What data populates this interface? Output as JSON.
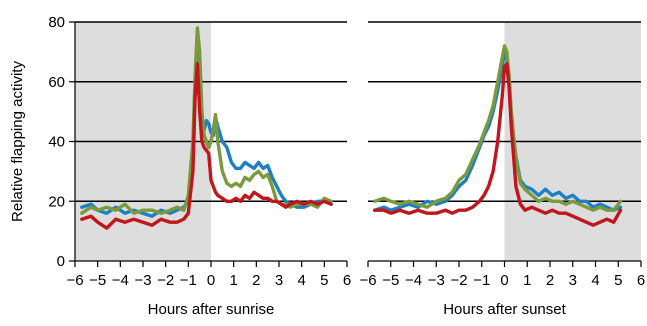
{
  "chart_data": [
    {
      "type": "line",
      "panel": "left",
      "xlabel": "Hours after sunrise",
      "ylabel": "Relative flapping activity",
      "xlim": [
        -6,
        6
      ],
      "ylim": [
        0,
        80
      ],
      "xticks": [
        "−6",
        "−5",
        "−4",
        "−3",
        "−2",
        "−1",
        "0",
        "1",
        "2",
        "3",
        "4",
        "5",
        "6"
      ],
      "yticks": [
        "0",
        "20",
        "40",
        "60",
        "80"
      ],
      "gridlines_y": [
        20,
        40,
        60,
        80
      ],
      "shaded_region": {
        "x": [
          -6,
          0
        ],
        "color": "#dddddd"
      },
      "series": [
        {
          "color": "#1f7fc4",
          "x": [
            -5.7,
            -5.3,
            -5.0,
            -4.6,
            -4.2,
            -3.8,
            -3.4,
            -3.0,
            -2.6,
            -2.2,
            -1.8,
            -1.5,
            -1.2,
            -1.0,
            -0.8,
            -0.7,
            -0.6,
            -0.5,
            -0.4,
            -0.3,
            -0.2,
            -0.1,
            0.0,
            0.1,
            0.2,
            0.3,
            0.5,
            0.7,
            0.9,
            1.1,
            1.3,
            1.5,
            1.7,
            1.9,
            2.1,
            2.3,
            2.5,
            2.7,
            2.9,
            3.1,
            3.3,
            3.5,
            3.8,
            4.1,
            4.4,
            4.7,
            5.0,
            5.3
          ],
          "y": [
            18,
            19,
            17,
            16,
            18,
            16,
            17,
            16,
            15,
            17,
            16,
            17,
            18,
            20,
            35,
            60,
            77,
            65,
            45,
            44,
            47,
            46,
            43,
            42,
            48,
            45,
            40,
            38,
            33,
            31,
            31,
            33,
            32,
            31,
            33,
            31,
            32,
            28,
            25,
            22,
            20,
            19,
            18,
            18,
            19,
            20,
            20,
            19
          ]
        },
        {
          "color": "#7a9a3d",
          "x": [
            -5.7,
            -5.3,
            -5.0,
            -4.6,
            -4.2,
            -3.8,
            -3.4,
            -3.0,
            -2.6,
            -2.2,
            -1.8,
            -1.5,
            -1.2,
            -1.0,
            -0.8,
            -0.7,
            -0.6,
            -0.5,
            -0.4,
            -0.3,
            -0.2,
            -0.1,
            0.0,
            0.1,
            0.2,
            0.3,
            0.5,
            0.7,
            0.9,
            1.1,
            1.3,
            1.5,
            1.7,
            1.9,
            2.1,
            2.3,
            2.5,
            2.7,
            2.9,
            3.1,
            3.3,
            3.5,
            3.8,
            4.1,
            4.4,
            4.7,
            5.0,
            5.3
          ],
          "y": [
            16,
            18,
            17,
            18,
            17,
            19,
            16,
            17,
            17,
            16,
            17,
            18,
            17,
            22,
            40,
            62,
            78,
            70,
            50,
            42,
            40,
            38,
            40,
            44,
            49,
            40,
            30,
            26,
            25,
            26,
            25,
            28,
            27,
            29,
            30,
            28,
            29,
            25,
            20,
            19,
            19,
            18,
            19,
            19,
            19,
            18,
            21,
            20
          ]
        },
        {
          "color": "#c0161c",
          "x": [
            -5.7,
            -5.3,
            -5.0,
            -4.6,
            -4.2,
            -3.8,
            -3.4,
            -3.0,
            -2.6,
            -2.2,
            -1.8,
            -1.5,
            -1.2,
            -1.0,
            -0.8,
            -0.7,
            -0.6,
            -0.5,
            -0.4,
            -0.3,
            -0.2,
            -0.1,
            0.0,
            0.1,
            0.2,
            0.3,
            0.5,
            0.7,
            0.9,
            1.1,
            1.3,
            1.5,
            1.7,
            1.9,
            2.1,
            2.3,
            2.5,
            2.7,
            2.9,
            3.1,
            3.3,
            3.5,
            3.8,
            4.1,
            4.4,
            4.7,
            5.0,
            5.3
          ],
          "y": [
            14,
            15,
            13,
            11,
            14,
            13,
            14,
            13,
            12,
            14,
            13,
            13,
            14,
            16,
            30,
            55,
            66,
            50,
            40,
            38,
            37,
            36,
            27,
            25,
            23,
            22,
            21,
            20,
            20,
            21,
            20,
            22,
            21,
            23,
            22,
            21,
            21,
            20,
            20,
            19,
            18,
            19,
            20,
            19,
            20,
            19,
            20,
            19
          ]
        }
      ]
    },
    {
      "type": "line",
      "panel": "right",
      "xlabel": "Hours after sunset",
      "ylabel": "",
      "xlim": [
        -6,
        6
      ],
      "ylim": [
        0,
        80
      ],
      "xticks": [
        "−6",
        "−5",
        "−4",
        "−3",
        "−2",
        "−1",
        "0",
        "1",
        "2",
        "3",
        "4",
        "5",
        "6"
      ],
      "yticks": [],
      "gridlines_y": [
        20,
        40,
        60,
        80
      ],
      "shaded_region": {
        "x": [
          0,
          6
        ],
        "color": "#dddddd"
      },
      "series": [
        {
          "color": "#1f7fc4",
          "x": [
            -5.7,
            -5.3,
            -5.0,
            -4.6,
            -4.2,
            -3.8,
            -3.4,
            -3.0,
            -2.6,
            -2.3,
            -2.0,
            -1.7,
            -1.4,
            -1.1,
            -0.9,
            -0.7,
            -0.5,
            -0.3,
            -0.1,
            0.0,
            0.1,
            0.2,
            0.3,
            0.5,
            0.7,
            0.9,
            1.2,
            1.5,
            1.8,
            2.1,
            2.4,
            2.7,
            3.0,
            3.3,
            3.6,
            3.9,
            4.2,
            4.5,
            4.8,
            5.1
          ],
          "y": [
            17,
            18,
            17,
            18,
            19,
            18,
            20,
            19,
            20,
            22,
            25,
            27,
            32,
            38,
            42,
            45,
            50,
            57,
            65,
            70,
            68,
            60,
            48,
            35,
            27,
            25,
            24,
            22,
            24,
            22,
            23,
            21,
            22,
            20,
            20,
            18,
            19,
            18,
            17,
            18
          ]
        },
        {
          "color": "#7a9a3d",
          "x": [
            -5.7,
            -5.3,
            -5.0,
            -4.6,
            -4.2,
            -3.8,
            -3.4,
            -3.0,
            -2.6,
            -2.3,
            -2.0,
            -1.7,
            -1.4,
            -1.1,
            -0.9,
            -0.7,
            -0.5,
            -0.3,
            -0.1,
            0.0,
            0.1,
            0.2,
            0.3,
            0.5,
            0.7,
            0.9,
            1.2,
            1.5,
            1.8,
            2.1,
            2.4,
            2.7,
            3.0,
            3.3,
            3.6,
            3.9,
            4.2,
            4.5,
            4.8,
            5.1
          ],
          "y": [
            20,
            21,
            20,
            19,
            20,
            19,
            18,
            20,
            21,
            23,
            27,
            29,
            34,
            39,
            43,
            47,
            52,
            60,
            68,
            72,
            70,
            62,
            50,
            34,
            26,
            24,
            22,
            20,
            21,
            20,
            20,
            19,
            20,
            19,
            18,
            17,
            18,
            17,
            17,
            20
          ]
        },
        {
          "color": "#c0161c",
          "x": [
            -5.7,
            -5.3,
            -5.0,
            -4.6,
            -4.2,
            -3.8,
            -3.4,
            -3.0,
            -2.6,
            -2.3,
            -2.0,
            -1.7,
            -1.4,
            -1.1,
            -0.9,
            -0.7,
            -0.5,
            -0.3,
            -0.1,
            0.0,
            0.1,
            0.2,
            0.3,
            0.5,
            0.7,
            0.9,
            1.2,
            1.5,
            1.8,
            2.1,
            2.4,
            2.7,
            3.0,
            3.3,
            3.6,
            3.9,
            4.2,
            4.5,
            4.8,
            5.1
          ],
          "y": [
            17,
            17,
            16,
            17,
            16,
            17,
            16,
            16,
            17,
            16,
            17,
            17,
            18,
            20,
            22,
            25,
            30,
            40,
            55,
            65,
            66,
            58,
            45,
            25,
            19,
            17,
            18,
            17,
            16,
            17,
            16,
            16,
            15,
            14,
            13,
            12,
            13,
            14,
            13,
            17
          ]
        }
      ]
    }
  ]
}
